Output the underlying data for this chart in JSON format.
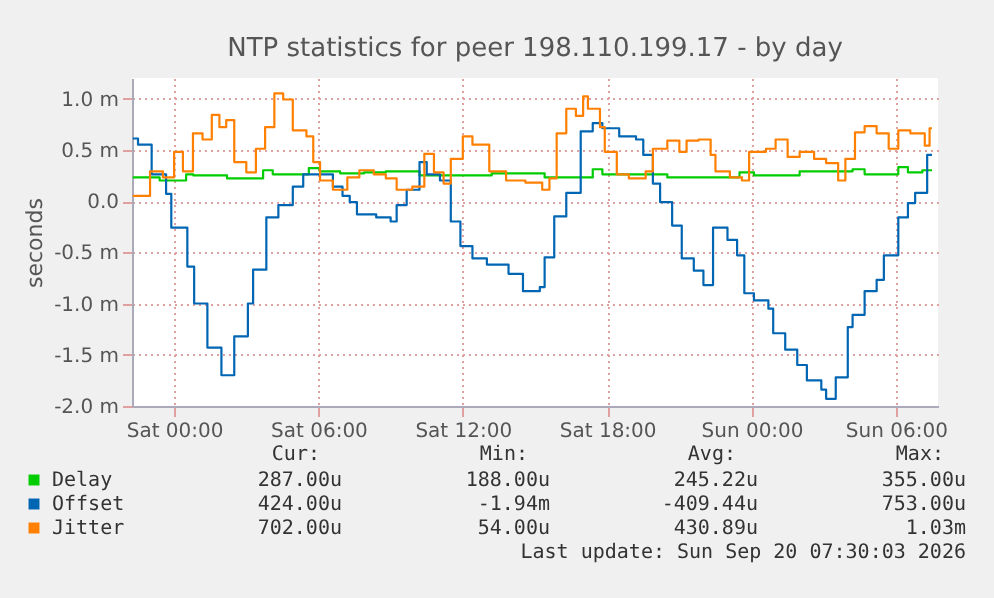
{
  "chart_data": {
    "type": "step",
    "title": "NTP statistics for peer 198.110.199.17 - by day",
    "ylabel": "seconds",
    "xlim": [
      "2026-09-18T22:15",
      "2026-09-20T07:45"
    ],
    "ylim": [
      -2.0,
      1.2
    ],
    "xticks": [
      {
        "value": "2026-09-19T00:00",
        "label": "Sat 00:00"
      },
      {
        "value": "2026-09-19T06:00",
        "label": "Sat 06:00"
      },
      {
        "value": "2026-09-19T12:00",
        "label": "Sat 12:00"
      },
      {
        "value": "2026-09-19T18:00",
        "label": "Sat 18:00"
      },
      {
        "value": "2026-09-20T00:00",
        "label": "Sun 00:00"
      },
      {
        "value": "2026-09-20T06:00",
        "label": "Sun 06:00"
      }
    ],
    "yticks": [
      {
        "value": -2.0,
        "label": "-2.0 m"
      },
      {
        "value": -1.5,
        "label": "-1.5 m"
      },
      {
        "value": -1.0,
        "label": "-1.0 m"
      },
      {
        "value": -0.5,
        "label": "-0.5 m"
      },
      {
        "value": 0,
        "label": "0.0"
      },
      {
        "value": 0.5,
        "label": "0.5 m"
      },
      {
        "value": 1.0,
        "label": "1.0 m"
      }
    ],
    "grid": true,
    "legend": "bottom",
    "series": [
      {
        "name": "Delay",
        "color": "#00cc00",
        "x": [
          "2026-09-18T22:17",
          "2026-09-18T23:04",
          "2026-09-18T23:24",
          "2026-09-19T00:30",
          "2026-09-19T00:48",
          "2026-09-19T02:12",
          "2026-09-19T02:45",
          "2026-09-19T03:42",
          "2026-09-19T04:06",
          "2026-09-19T05:36",
          "2026-09-19T06:03",
          "2026-09-19T06:54",
          "2026-09-19T07:54",
          "2026-09-19T08:48",
          "2026-09-19T09:42",
          "2026-09-19T10:12",
          "2026-09-19T12:06",
          "2026-09-19T13:12",
          "2026-09-19T15:24",
          "2026-09-19T17:24",
          "2026-09-19T17:48",
          "2026-09-19T19:36",
          "2026-09-19T20:30",
          "2026-09-19T21:48",
          "2026-09-19T23:30",
          "2026-09-20T00:06",
          "2026-09-20T02:00",
          "2026-09-20T04:12",
          "2026-09-20T04:42",
          "2026-09-20T06:06",
          "2026-09-20T06:30",
          "2026-09-20T07:06",
          "2026-09-20T07:30"
        ],
        "values": [
          0.23,
          0.23,
          0.2,
          0.26,
          0.25,
          0.22,
          0.22,
          0.3,
          0.26,
          0.32,
          0.29,
          0.27,
          0.28,
          0.29,
          0.29,
          0.25,
          0.25,
          0.27,
          0.23,
          0.31,
          0.26,
          0.26,
          0.23,
          0.23,
          0.28,
          0.25,
          0.29,
          0.31,
          0.26,
          0.33,
          0.28,
          0.3,
          0.3
        ]
      },
      {
        "name": "Offset",
        "color": "#0066b3",
        "x": [
          "2026-09-18T22:17",
          "2026-09-18T22:30",
          "2026-09-18T23:04",
          "2026-09-18T23:40",
          "2026-09-18T23:53",
          "2026-09-19T00:33",
          "2026-09-19T00:50",
          "2026-09-19T01:23",
          "2026-09-19T01:58",
          "2026-09-19T02:30",
          "2026-09-19T03:04",
          "2026-09-19T03:17",
          "2026-09-19T03:50",
          "2026-09-19T04:20",
          "2026-09-19T04:56",
          "2026-09-19T05:22",
          "2026-09-19T06:36",
          "2026-09-19T07:00",
          "2026-09-19T07:18",
          "2026-09-19T07:36",
          "2026-09-19T08:24",
          "2026-09-19T09:00",
          "2026-09-19T09:15",
          "2026-09-19T09:40",
          "2026-09-19T10:12",
          "2026-09-19T10:30",
          "2026-09-19T11:03",
          "2026-09-19T11:30",
          "2026-09-19T11:54",
          "2026-09-19T12:24",
          "2026-09-19T13:00",
          "2026-09-19T13:54",
          "2026-09-19T14:30",
          "2026-09-19T15:12",
          "2026-09-19T15:24",
          "2026-09-19T15:48",
          "2026-09-19T16:18",
          "2026-09-19T16:54",
          "2026-09-19T17:24",
          "2026-09-19T17:48",
          "2026-09-19T18:30",
          "2026-09-19T19:12",
          "2026-09-19T19:30",
          "2026-09-19T19:54",
          "2026-09-19T20:12",
          "2026-09-19T20:42",
          "2026-09-19T21:06",
          "2026-09-19T21:36",
          "2026-09-19T22:00",
          "2026-09-19T22:24",
          "2026-09-19T23:00",
          "2026-09-19T23:24",
          "2026-09-19T23:42",
          "2026-09-20T00:06",
          "2026-09-20T00:42",
          "2026-09-20T00:54",
          "2026-09-20T01:24",
          "2026-09-20T01:54",
          "2026-09-20T02:18",
          "2026-09-20T02:54",
          "2026-09-20T03:06",
          "2026-09-20T03:30",
          "2026-09-20T04:00",
          "2026-09-20T04:12",
          "2026-09-20T04:42",
          "2026-09-20T05:12",
          "2026-09-20T05:30",
          "2026-09-20T06:06",
          "2026-09-20T06:30",
          "2026-09-20T06:48",
          "2026-09-20T07:18",
          "2026-09-20T07:30"
        ],
        "values": [
          0.61,
          0.55,
          0.26,
          0.07,
          -0.26,
          -0.64,
          -1.0,
          -1.43,
          -1.7,
          -1.32,
          -1.0,
          -0.67,
          -0.16,
          -0.04,
          0.14,
          0.26,
          0.14,
          0.05,
          -0.01,
          -0.13,
          -0.16,
          -0.2,
          -0.04,
          0.11,
          0.38,
          0.26,
          0.2,
          -0.2,
          -0.44,
          -0.56,
          -0.62,
          -0.71,
          -0.88,
          -0.84,
          -0.55,
          -0.15,
          0.08,
          0.68,
          0.76,
          0.71,
          0.63,
          0.6,
          0.45,
          0.17,
          -0.01,
          -0.24,
          -0.56,
          -0.68,
          -0.82,
          -0.26,
          -0.38,
          -0.53,
          -0.9,
          -0.97,
          -1.05,
          -1.29,
          -1.45,
          -1.6,
          -1.75,
          -1.84,
          -1.93,
          -1.72,
          -1.23,
          -1.11,
          -0.88,
          -0.77,
          -0.53,
          -0.16,
          -0.02,
          0.08,
          0.45,
          0.45
        ]
      },
      {
        "name": "Jitter",
        "color": "#ff8000",
        "x": [
          "2026-09-18T22:17",
          "2026-09-18T23:00",
          "2026-09-18T23:32",
          "2026-09-19T00:00",
          "2026-09-19T00:22",
          "2026-09-19T00:47",
          "2026-09-19T01:11",
          "2026-09-19T01:34",
          "2026-09-19T01:53",
          "2026-09-19T02:10",
          "2026-09-19T02:30",
          "2026-09-19T03:00",
          "2026-09-19T03:24",
          "2026-09-19T03:47",
          "2026-09-19T04:10",
          "2026-09-19T04:32",
          "2026-09-19T04:56",
          "2026-09-19T05:30",
          "2026-09-19T05:47",
          "2026-09-19T06:04",
          "2026-09-19T06:36",
          "2026-09-19T07:12",
          "2026-09-19T07:42",
          "2026-09-19T08:18",
          "2026-09-19T08:48",
          "2026-09-19T09:15",
          "2026-09-19T09:54",
          "2026-09-19T10:24",
          "2026-09-19T10:48",
          "2026-09-19T11:12",
          "2026-09-19T11:30",
          "2026-09-19T12:00",
          "2026-09-19T12:24",
          "2026-09-19T13:06",
          "2026-09-19T13:48",
          "2026-09-19T14:36",
          "2026-09-19T15:18",
          "2026-09-19T15:36",
          "2026-09-19T15:54",
          "2026-09-19T16:18",
          "2026-09-19T16:42",
          "2026-09-19T17:00",
          "2026-09-19T17:12",
          "2026-09-19T17:42",
          "2026-09-19T17:54",
          "2026-09-19T18:24",
          "2026-09-19T18:54",
          "2026-09-19T19:36",
          "2026-09-19T19:54",
          "2026-09-19T20:30",
          "2026-09-19T21:00",
          "2026-09-19T21:18",
          "2026-09-19T21:48",
          "2026-09-19T22:18",
          "2026-09-19T22:30",
          "2026-09-19T23:06",
          "2026-09-19T23:36",
          "2026-09-19T23:54",
          "2026-09-20T00:36",
          "2026-09-20T01:00",
          "2026-09-20T01:30",
          "2026-09-20T02:00",
          "2026-09-20T02:36",
          "2026-09-20T03:06",
          "2026-09-20T03:36",
          "2026-09-20T03:54",
          "2026-09-20T04:18",
          "2026-09-20T04:42",
          "2026-09-20T05:12",
          "2026-09-20T05:42",
          "2026-09-20T06:06",
          "2026-09-20T06:36",
          "2026-09-20T07:12",
          "2026-09-20T07:24",
          "2026-09-20T07:30"
        ],
        "values": [
          0.05,
          0.29,
          0.23,
          0.48,
          0.29,
          0.66,
          0.6,
          0.84,
          0.72,
          0.79,
          0.38,
          0.28,
          0.51,
          0.72,
          1.05,
          0.99,
          0.69,
          0.63,
          0.38,
          0.2,
          0.11,
          0.23,
          0.3,
          0.26,
          0.22,
          0.11,
          0.14,
          0.46,
          0.28,
          0.17,
          0.41,
          0.63,
          0.55,
          0.29,
          0.2,
          0.18,
          0.11,
          0.22,
          0.66,
          0.9,
          0.83,
          1.02,
          0.9,
          0.72,
          0.48,
          0.26,
          0.22,
          0.29,
          0.51,
          0.59,
          0.48,
          0.59,
          0.6,
          0.45,
          0.29,
          0.23,
          0.2,
          0.48,
          0.51,
          0.6,
          0.43,
          0.48,
          0.41,
          0.37,
          0.2,
          0.41,
          0.67,
          0.73,
          0.66,
          0.51,
          0.69,
          0.66,
          0.54,
          0.71,
          0.71
        ]
      }
    ],
    "annotations": [
      "Cur:",
      "Min:",
      "Avg:",
      "Max:",
      "287.00u",
      "188.00u",
      "245.22u",
      "355.00u",
      "424.00u",
      "-1.94m",
      "-409.44u",
      "753.00u",
      "702.00u",
      "54.00u",
      "430.89u",
      "1.03m",
      "Last update: Sun Sep 20 07:30:03 2026"
    ]
  }
}
